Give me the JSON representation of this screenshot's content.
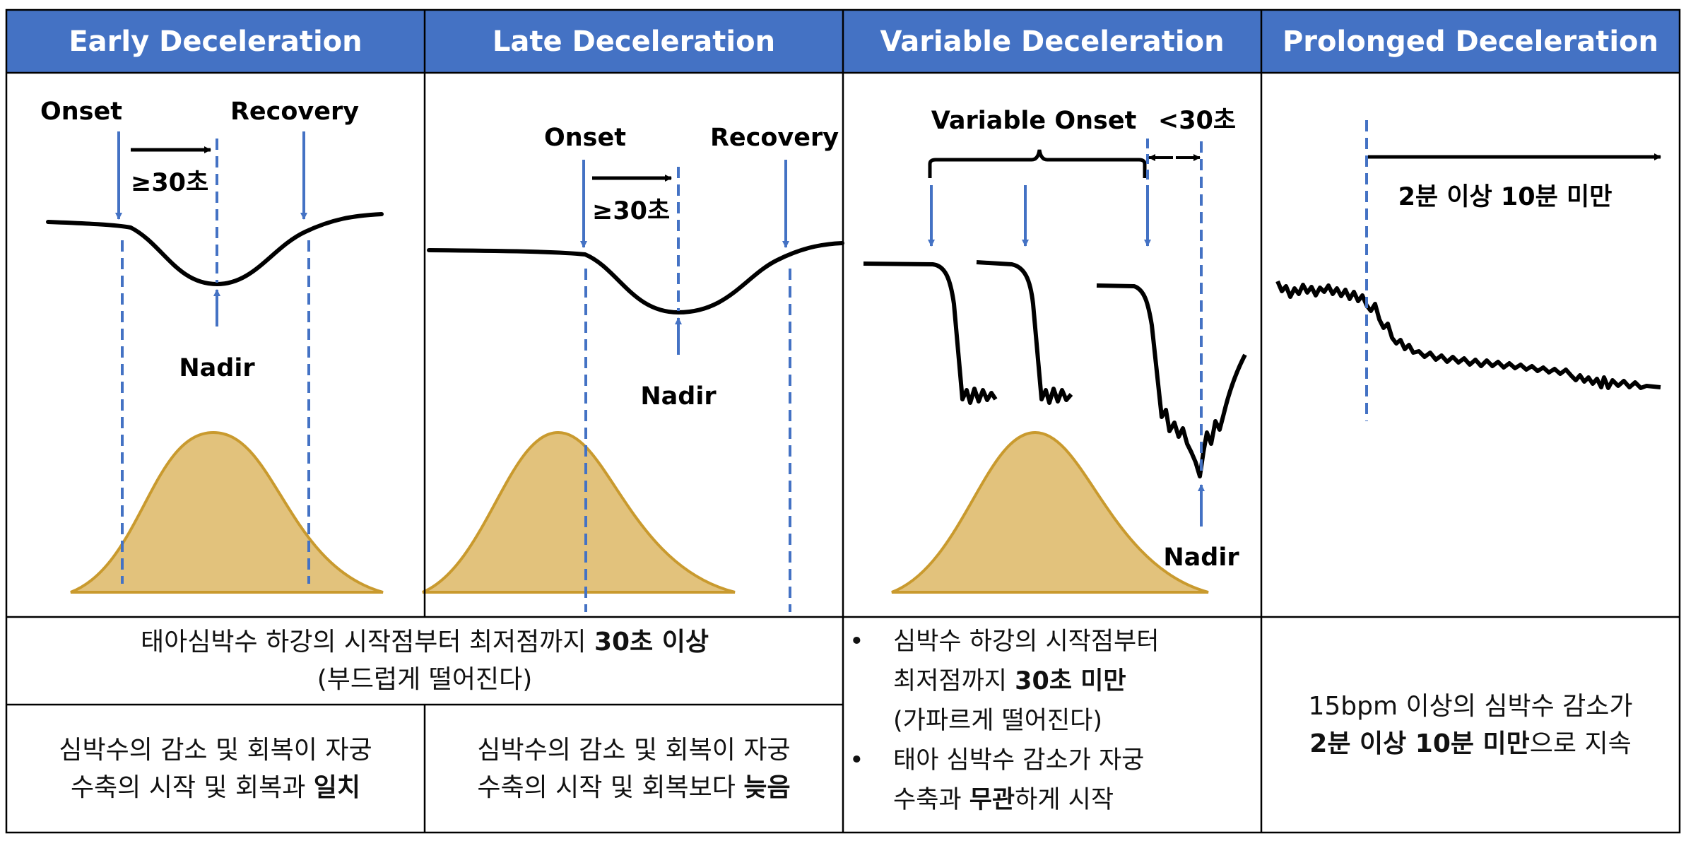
{
  "headers": [
    "Early Deceleration",
    "Late Deceleration",
    "Variable Deceleration",
    "Prolonged Deceleration"
  ],
  "diagram": {
    "early": {
      "onset": "Onset",
      "recovery": "Recovery",
      "interval": "≥30초",
      "nadir": "Nadir"
    },
    "late": {
      "onset": "Onset",
      "recovery": "Recovery",
      "interval": "≥30초",
      "nadir": "Nadir"
    },
    "variable": {
      "onset": "Variable Onset",
      "interval": "<30초",
      "nadir": "Nadir"
    },
    "prolonged": {
      "duration": "2분 이상 10분 미만"
    }
  },
  "descriptions": {
    "shared": {
      "text_a": "태아심박수 하강의 시작점부터 최저점까지 ",
      "emph": "30초 이상",
      "line2": "(부드럽게 떨어진다)"
    },
    "early": {
      "line1": "심박수의 감소 및 회복이 자궁",
      "line2_a": "수축의 시작 및 회복과 ",
      "line2_emph": "일치"
    },
    "late": {
      "line1": "심박수의 감소 및 회복이 자궁",
      "line2_a": "수축의 시작 및 회복보다 ",
      "line2_emph": "늦음"
    },
    "variable": {
      "b1_l1": "심박수 하강의 시작점부터",
      "b1_l2_a": "최저점까지 ",
      "b1_l2_emph": "30초 미만",
      "b1_l3": "(가파르게 떨어진다)",
      "b2_l1": "태아 심박수 감소가 자궁",
      "b2_l2_a": "수축과 ",
      "b2_l2_emph": "무관",
      "b2_l2_b": "하게 시작"
    },
    "prolonged": {
      "line1": "15bpm 이상의 심박수 감소가",
      "line2_emph": "2분 이상 10분 미만",
      "line2_b": "으로 지속"
    }
  },
  "colors": {
    "header_bg": "#4472C4",
    "header_text": "#FFFFFF",
    "marker": "#4472C4",
    "curve": "#000000",
    "contraction_fill": "#E2C27C",
    "contraction_stroke": "#C99A2E",
    "grid": "#000000"
  }
}
